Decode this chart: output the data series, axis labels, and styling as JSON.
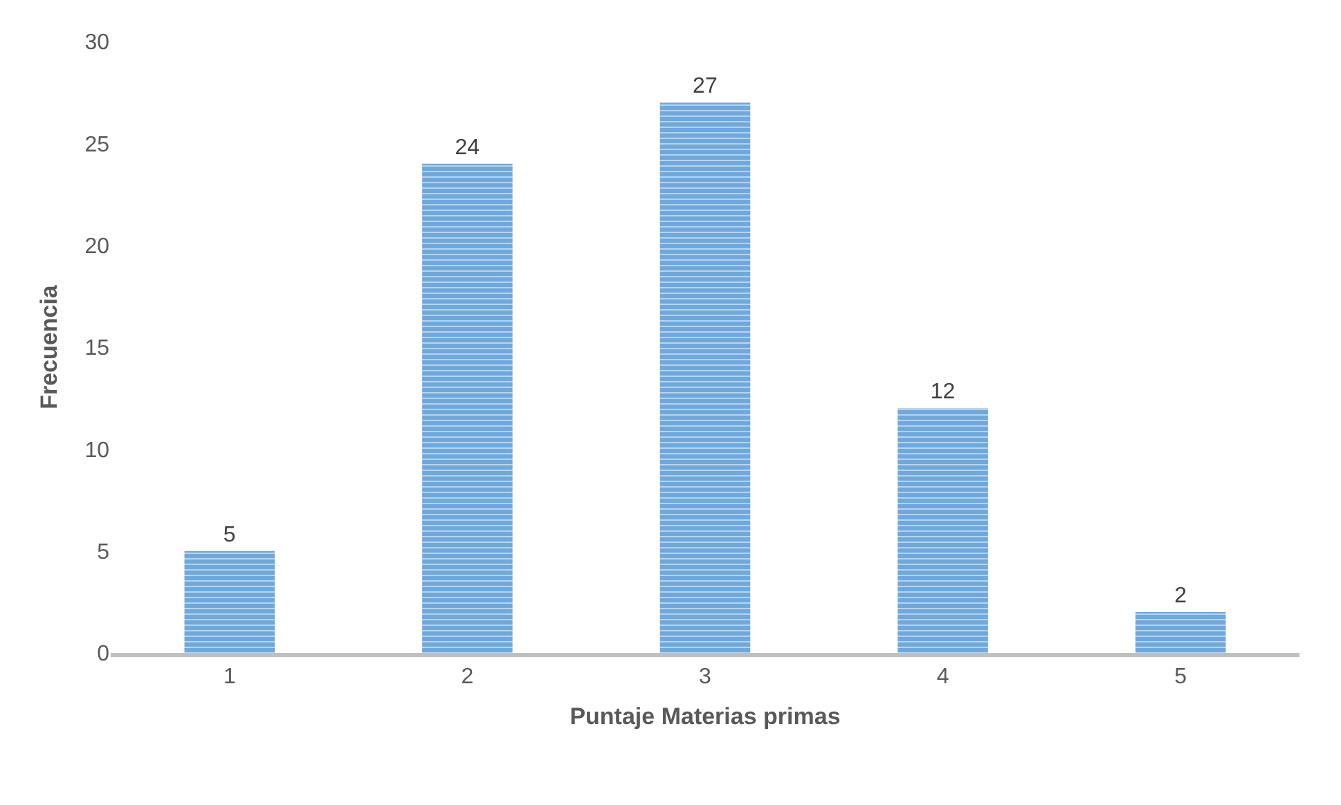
{
  "chart_data": {
    "type": "bar",
    "xlabel": "Puntaje Materias primas",
    "ylabel": "Frecuencia",
    "categories": [
      "1",
      "2",
      "3",
      "4",
      "5"
    ],
    "values": [
      5,
      24,
      27,
      12,
      2
    ],
    "color": "#6fa8dc",
    "ylim": [
      0,
      30
    ],
    "yticks": [
      0,
      5,
      10,
      15,
      20,
      25,
      30
    ],
    "grid": false,
    "data_labels": true
  }
}
